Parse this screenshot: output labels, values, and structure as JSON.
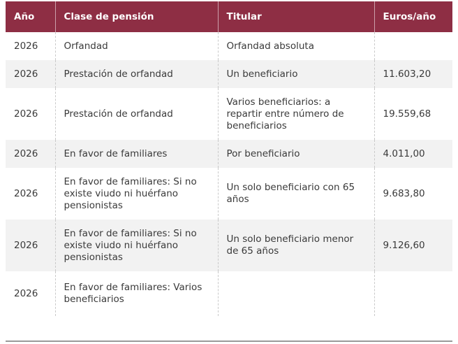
{
  "table": {
    "headers": {
      "year": "Año",
      "pension_class": "Clase de pensión",
      "holder": "Titular",
      "amount": "Euros/año"
    },
    "rows": [
      {
        "year": "2026",
        "pension_class": "Orfandad",
        "holder": "Orfandad absoluta",
        "amount": ""
      },
      {
        "year": "2026",
        "pension_class": "Prestación de orfandad",
        "holder": "Un beneficiario",
        "amount": "11.603,20"
      },
      {
        "year": "2026",
        "pension_class": "Prestación de orfandad",
        "holder": "Varios beneficiarios: a repartir entre número de beneficiarios",
        "amount": "19.559,68"
      },
      {
        "year": "2026",
        "pension_class": "En favor de familiares",
        "holder": "Por beneficiario",
        "amount": "4.011,00"
      },
      {
        "year": "2026",
        "pension_class": "En favor de familiares: Si no existe viudo ni huérfano pensionistas",
        "holder": "Un solo beneficiario con 65 años",
        "amount": "9.683,80"
      },
      {
        "year": "2026",
        "pension_class": "En favor de familiares: Si no existe viudo ni huérfano pensionistas",
        "holder": "Un solo beneficiario menor de 65 años",
        "amount": "9.126,60"
      },
      {
        "year": "2026",
        "pension_class": "En favor de familiares: Varios beneficiarios",
        "holder": "",
        "amount": ""
      }
    ]
  },
  "colors": {
    "header_bg": "#8e2e44",
    "header_text": "#ffffff",
    "stripe_bg": "#f2f2f2"
  }
}
